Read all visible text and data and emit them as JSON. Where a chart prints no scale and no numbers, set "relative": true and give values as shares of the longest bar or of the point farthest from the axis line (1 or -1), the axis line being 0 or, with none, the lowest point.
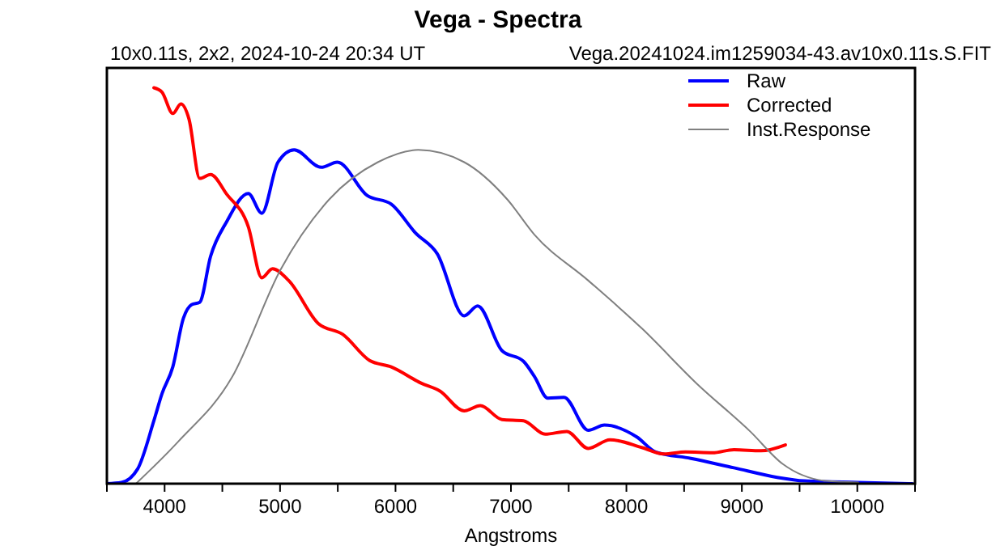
{
  "chart_data": {
    "type": "line",
    "title": "Vega - Spectra",
    "subtitle": "10x0.11s, 2x2,  2024-10-24 20:34 UT",
    "annotations": [
      "Vega.20241024.im1259034-43.av10x0.11s.S.FIT"
    ],
    "xlabel": "Angstroms",
    "relative": true,
    "xlim": [
      3500,
      10500
    ],
    "xticks": [
      {
        "value": 3500,
        "label": null
      },
      4000,
      {
        "value": 4500,
        "label": null
      },
      5000,
      {
        "value": 5500,
        "label": null
      },
      6000,
      {
        "value": 6500,
        "label": null
      },
      7000,
      {
        "value": 7500,
        "label": null
      },
      8000,
      {
        "value": 8500,
        "label": null
      },
      9000,
      {
        "value": 9500,
        "label": null
      },
      10000,
      {
        "value": 10500,
        "label": null
      }
    ],
    "tick_labels": "x",
    "grid": false,
    "legend": "top right",
    "series": [
      {
        "name": "Raw",
        "color": "#0000ff",
        "x": [
          3500,
          3626,
          3766,
          3907,
          3977,
          4071,
          4163,
          4233,
          4304,
          4398,
          4538,
          4725,
          4842,
          4982,
          5122,
          5356,
          5496,
          5754,
          5963,
          6174,
          6361,
          6595,
          6712,
          6922,
          7109,
          7203,
          7319,
          7459,
          7670,
          7810,
          8090,
          8254,
          8558,
          8932,
          9306,
          9540,
          10008,
          10475
        ],
        "values": [
          0,
          0.003,
          0.037,
          0.159,
          0.227,
          0.295,
          0.418,
          0.452,
          0.458,
          0.574,
          0.662,
          0.733,
          0.683,
          0.812,
          0.843,
          0.799,
          0.812,
          0.728,
          0.706,
          0.633,
          0.581,
          0.424,
          0.449,
          0.336,
          0.309,
          0.271,
          0.216,
          0.218,
          0.135,
          0.148,
          0.118,
          0.08,
          0.064,
          0.04,
          0.016,
          0.007,
          0.003,
          0
        ]
      },
      {
        "name": "Corrected",
        "color": "#ff0000",
        "x": [
          3907,
          3977,
          4071,
          4141,
          4211,
          4304,
          4398,
          4538,
          4725,
          4842,
          4935,
          5075,
          5333,
          5543,
          5776,
          5963,
          6221,
          6385,
          6595,
          6735,
          6922,
          7109,
          7296,
          7483,
          7670,
          7857,
          8138,
          8325,
          8512,
          8745,
          8932,
          9166,
          9377
        ],
        "values": [
          1,
          0.989,
          0.935,
          0.959,
          0.921,
          0.771,
          0.781,
          0.731,
          0.649,
          0.52,
          0.543,
          0.513,
          0.404,
          0.377,
          0.311,
          0.295,
          0.254,
          0.234,
          0.184,
          0.197,
          0.162,
          0.159,
          0.125,
          0.132,
          0.089,
          0.111,
          0.091,
          0.075,
          0.08,
          0.078,
          0.086,
          0.083,
          0.098
        ]
      },
      {
        "name": "Inst.Response",
        "color": "#808080",
        "x": [
          3752,
          4117,
          4584,
          5005,
          5426,
          5847,
          6197,
          6595,
          6968,
          7203,
          7670,
          8138,
          8605,
          9072,
          9353,
          9727,
          10008
        ],
        "values": [
          0,
          0.106,
          0.269,
          0.541,
          0.718,
          0.812,
          0.843,
          0.812,
          0.718,
          0.629,
          0.513,
          0.391,
          0.254,
          0.132,
          0.05,
          0.007,
          0.003
        ]
      }
    ]
  }
}
